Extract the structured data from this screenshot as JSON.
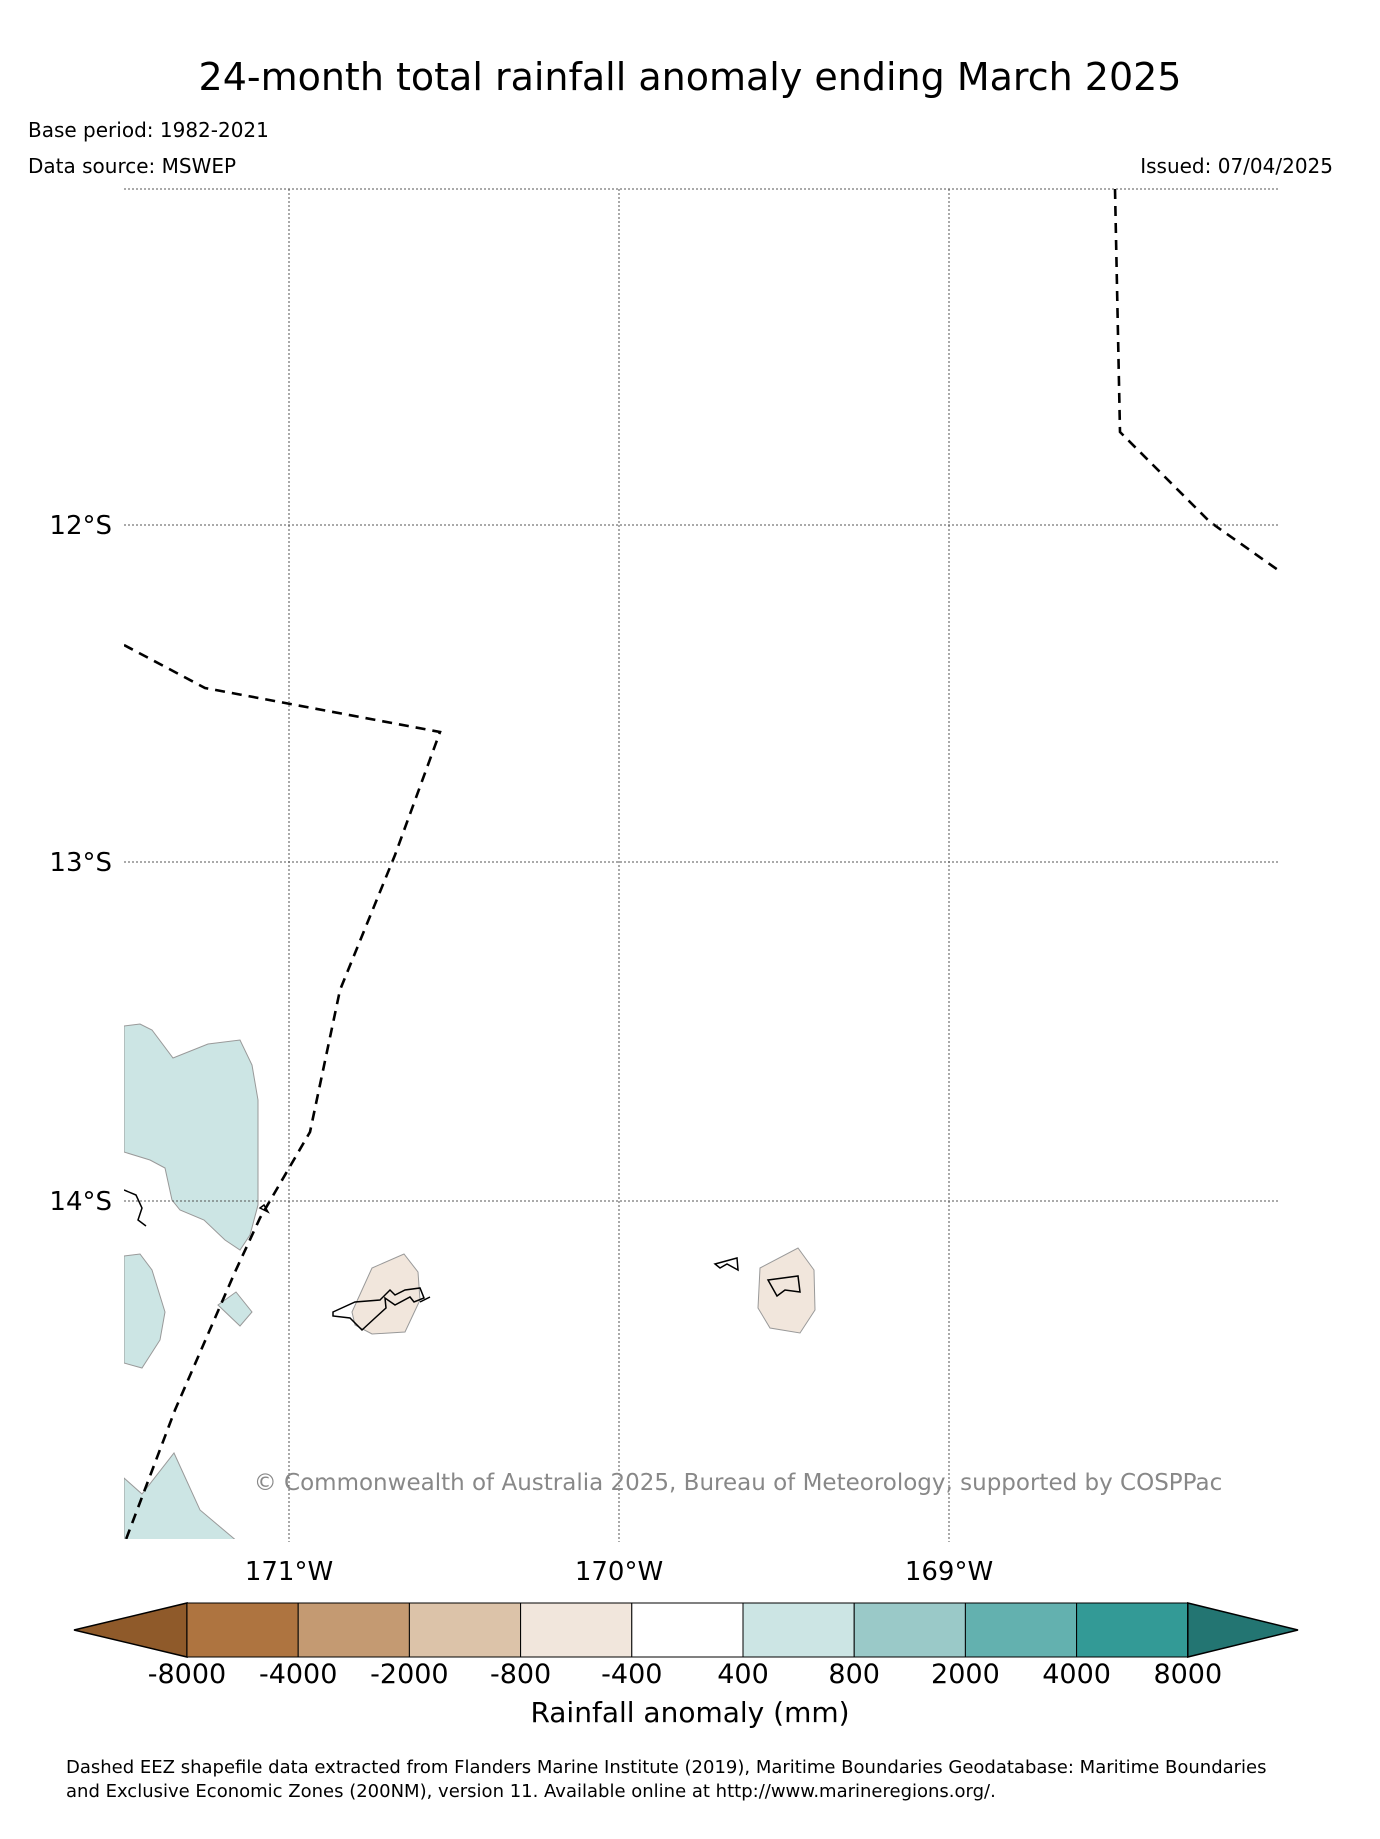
{
  "title": "24-month total rainfall anomaly ending March 2025",
  "base_period": "Base period: 1982-2021",
  "data_source": "Data source: MSWEP",
  "issued": "Issued: 07/04/2025",
  "copyright": "© Commonwealth of Australia 2025, Bureau of Meteorology, supported by COSPPac",
  "lat_labels": [
    "12°S",
    "13°S",
    "14°S"
  ],
  "lon_labels": [
    "171°W",
    "170°W",
    "169°W"
  ],
  "colorbar": {
    "label": "Rainfall anomaly (mm)",
    "ticks": [
      "-8000",
      "-4000",
      "-2000",
      "-800",
      "-400",
      "400",
      "800",
      "2000",
      "4000",
      "8000"
    ],
    "colors": [
      "#8f5a2a",
      "#ae7440",
      "#c49a72",
      "#dcc3a9",
      "#f1e6dc",
      "#ffffff",
      "#cce5e4",
      "#9ac9c8",
      "#63b1af",
      "#339a96",
      "#237572"
    ]
  },
  "footer": {
    "line1": "Dashed EEZ shapefile data extracted from Flanders Marine Institute (2019), Maritime Boundaries Geodatabase: Maritime Boundaries",
    "line2": "and Exclusive Economic Zones (200NM), version 11. Available online at http://www.marineregions.org/."
  }
}
